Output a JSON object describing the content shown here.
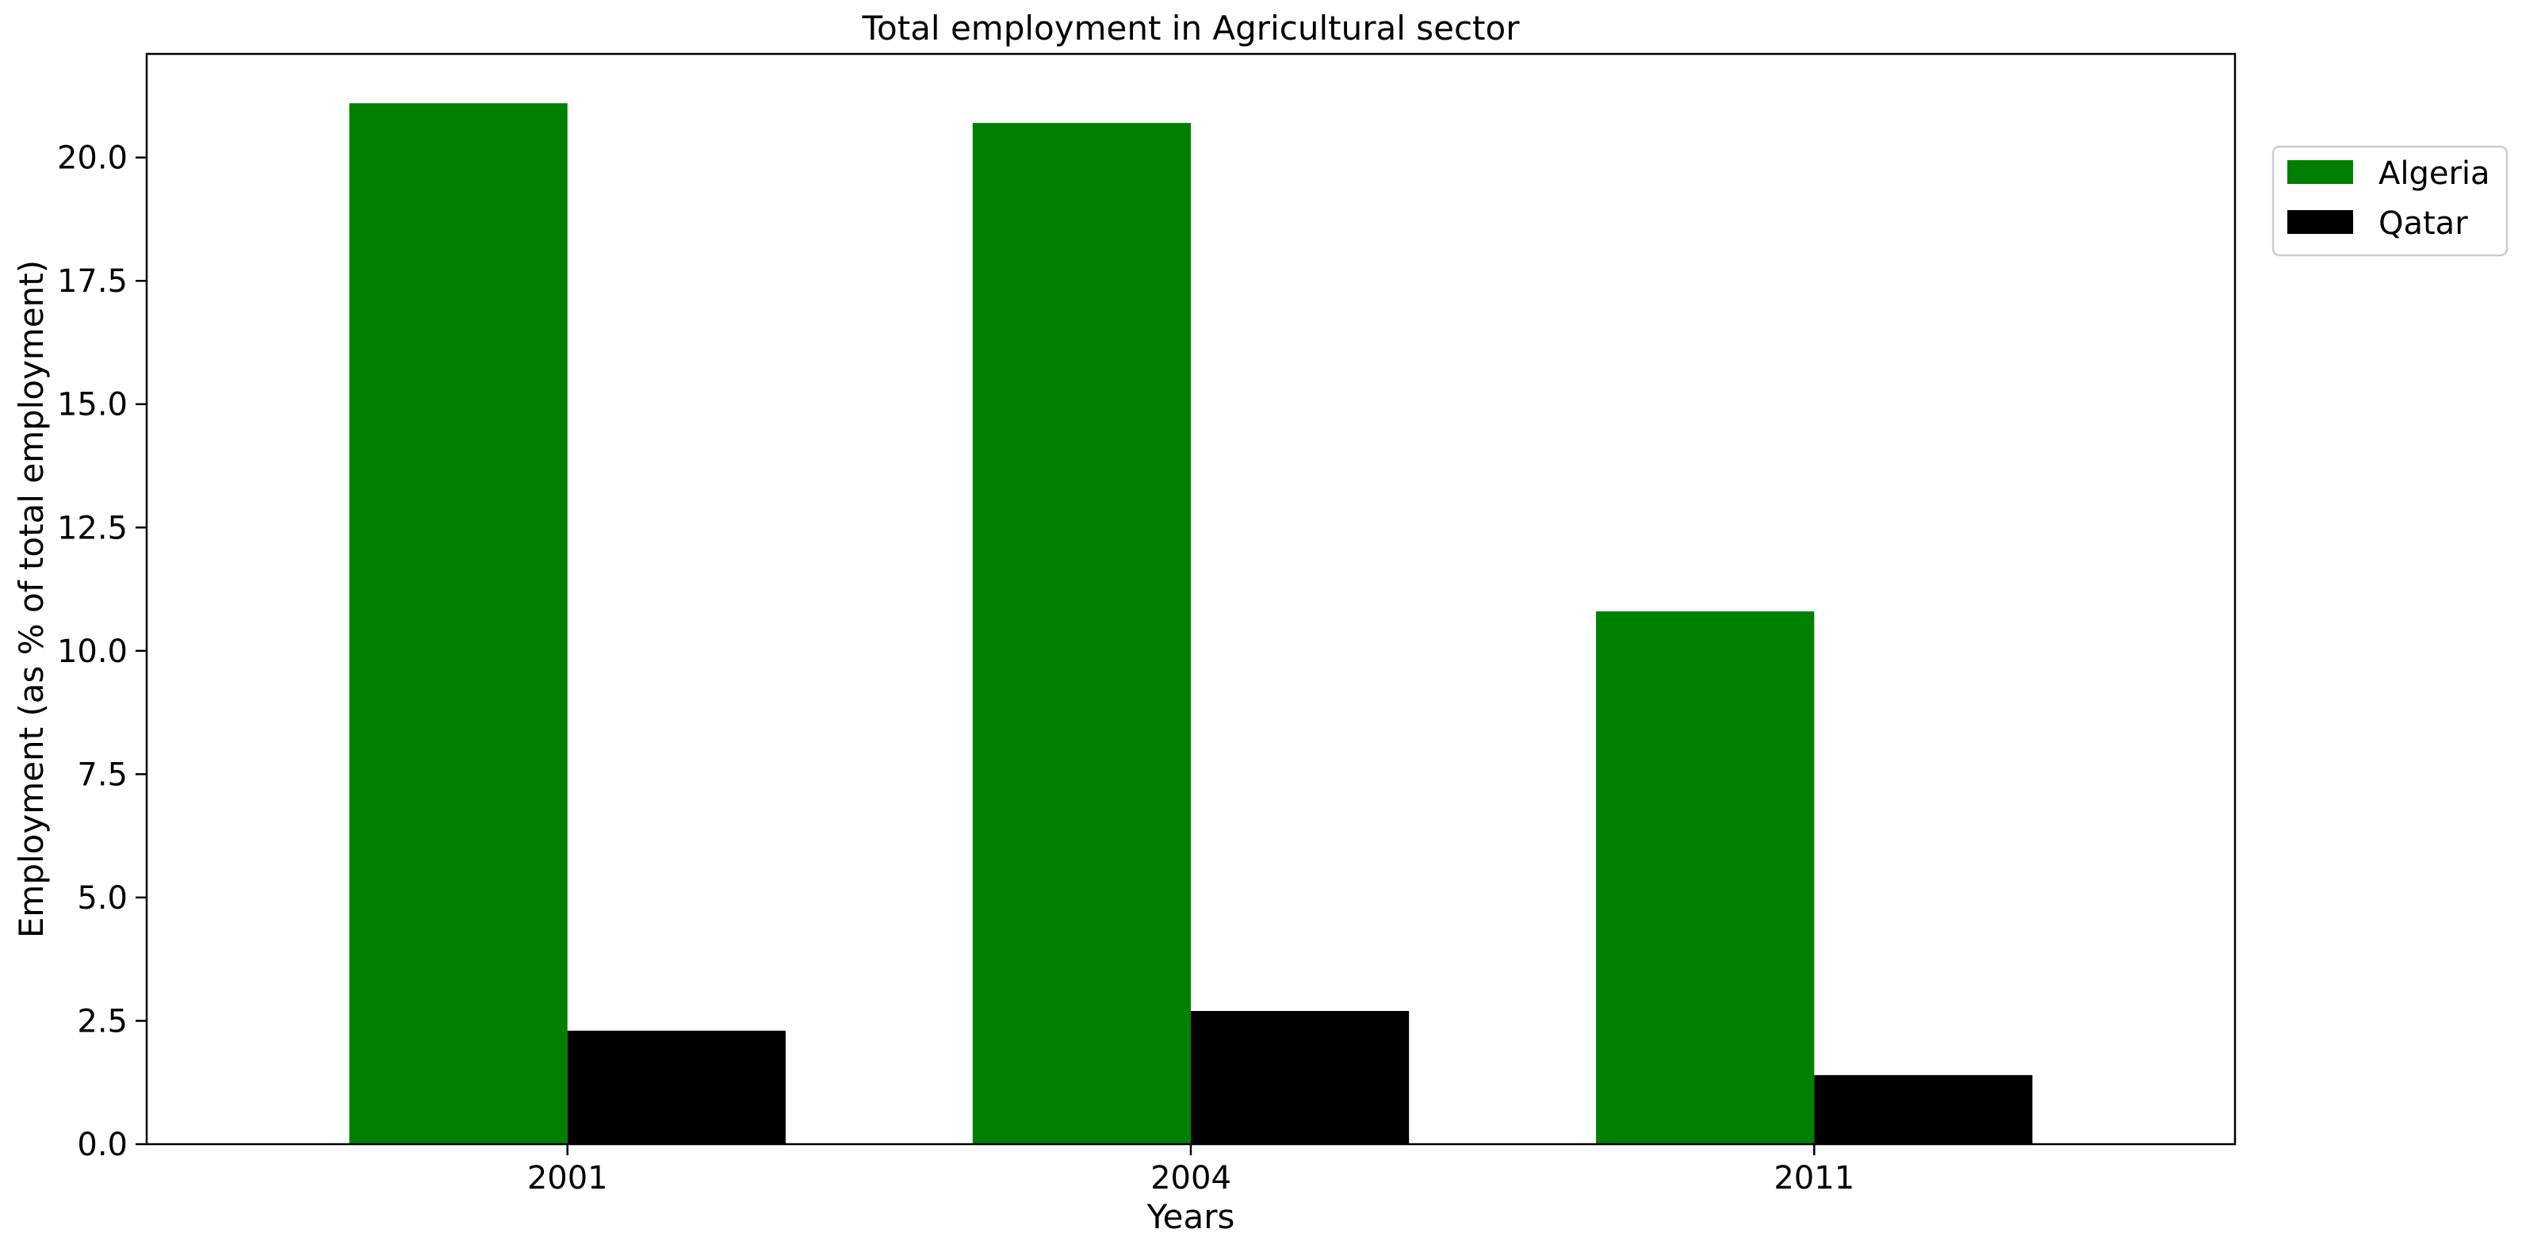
{
  "chart_data": {
    "type": "bar",
    "title": "Total employment in Agricultural sector",
    "xlabel": "Years",
    "ylabel": "Employment (as % of total employment)",
    "categories": [
      "2001",
      "2004",
      "2011"
    ],
    "series": [
      {
        "name": "Algeria",
        "color": "#008000",
        "values": [
          21.1,
          20.7,
          10.8
        ]
      },
      {
        "name": "Qatar",
        "color": "#000000",
        "values": [
          2.3,
          2.7,
          1.4
        ]
      }
    ],
    "ylim": [
      0,
      22.1
    ],
    "yticks": [
      "0.0",
      "2.5",
      "5.0",
      "7.5",
      "10.0",
      "12.5",
      "15.0",
      "17.5",
      "20.0"
    ],
    "grid": false,
    "legend_position": "upper right, outside plot area"
  }
}
